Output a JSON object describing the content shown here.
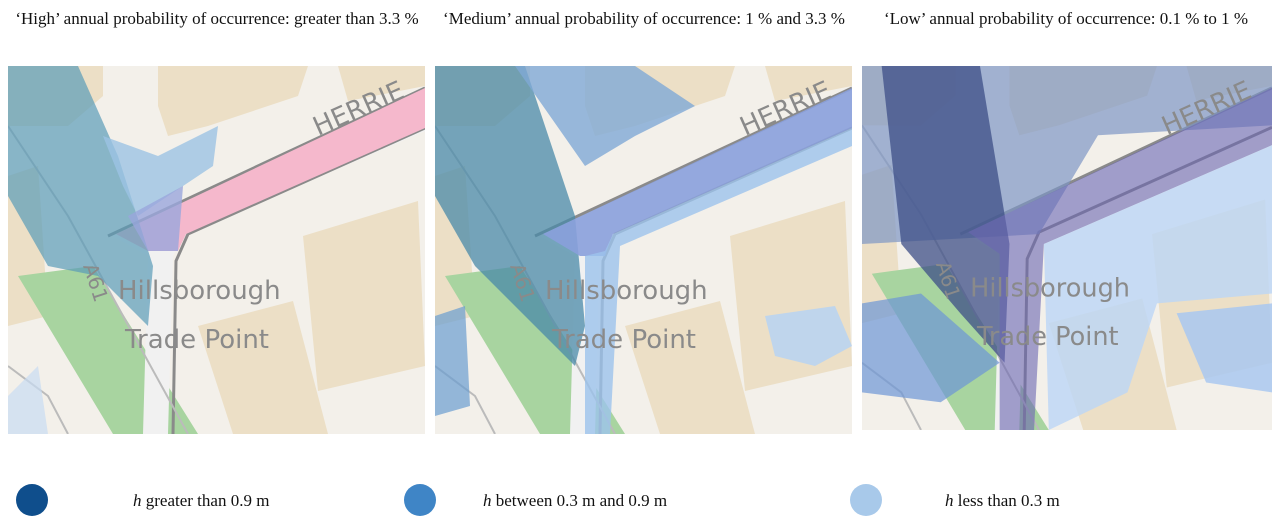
{
  "panels": [
    {
      "title": "‘High’ annual probability of occurrence: greater than 3.3 %"
    },
    {
      "title": "‘Medium’ annual probability of occurrence: 1 % and 3.3 %"
    },
    {
      "title": "‘Low’ annual probability of occurrence: 0.1 % to 1 %"
    }
  ],
  "map_labels": {
    "road": "HERRIE",
    "route": "A61",
    "place_line1": "Hillsborough",
    "place_line2": "Trade Point"
  },
  "legend": [
    {
      "symbol": "h",
      "text": "greater than 0.9 m",
      "color": "#0f4e8c"
    },
    {
      "symbol": "h",
      "text": "between 0.3 m and 0.9 m",
      "color": "#3f85c6"
    },
    {
      "symbol": "h",
      "text": "less than 0.3 m",
      "color": "#a8c9ea"
    }
  ]
}
